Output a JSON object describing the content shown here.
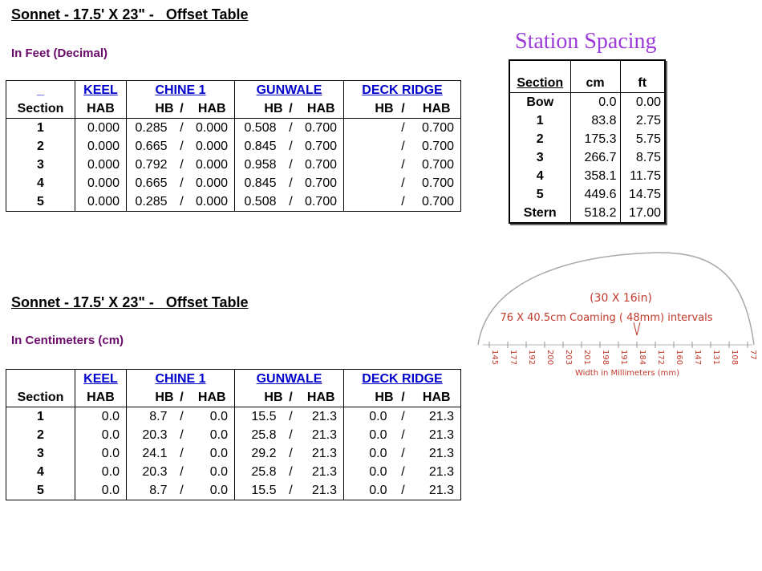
{
  "feet": {
    "title": "Sonnet - 17.5' X 23\" -   Offset Table",
    "subtitle": "In Feet (Decimal)",
    "groups": {
      "section_blank": "_",
      "keel": "KEEL",
      "chine": "CHINE 1",
      "gunwale": "GUNWALE",
      "deck": "DECK RIDGE"
    },
    "headers": {
      "section": "Section",
      "hab": "HAB",
      "hb": "HB",
      "slash": "/"
    },
    "rows": [
      {
        "section": "1",
        "keel_hab": "0.000",
        "chine_hb": "0.285",
        "chine_hab": "0.000",
        "gun_hb": "0.508",
        "gun_hab": "0.700",
        "deck_hb": "",
        "deck_hab": "0.700"
      },
      {
        "section": "2",
        "keel_hab": "0.000",
        "chine_hb": "0.665",
        "chine_hab": "0.000",
        "gun_hb": "0.845",
        "gun_hab": "0.700",
        "deck_hb": "",
        "deck_hab": "0.700"
      },
      {
        "section": "3",
        "keel_hab": "0.000",
        "chine_hb": "0.792",
        "chine_hab": "0.000",
        "gun_hb": "0.958",
        "gun_hab": "0.700",
        "deck_hb": "",
        "deck_hab": "0.700"
      },
      {
        "section": "4",
        "keel_hab": "0.000",
        "chine_hb": "0.665",
        "chine_hab": "0.000",
        "gun_hb": "0.845",
        "gun_hab": "0.700",
        "deck_hb": "",
        "deck_hab": "0.700"
      },
      {
        "section": "5",
        "keel_hab": "0.000",
        "chine_hb": "0.285",
        "chine_hab": "0.000",
        "gun_hb": "0.508",
        "gun_hab": "0.700",
        "deck_hb": "",
        "deck_hab": "0.700"
      }
    ]
  },
  "cm": {
    "title": "Sonnet - 17.5' X 23\" -   Offset Table",
    "subtitle": "In Centimeters (cm)",
    "groups": {
      "keel": "KEEL",
      "chine": "CHINE 1",
      "gunwale": "GUNWALE",
      "deck": "DECK RIDGE"
    },
    "headers": {
      "section": "Section",
      "hab": "HAB",
      "hb": "HB",
      "slash": "/"
    },
    "rows": [
      {
        "section": "1",
        "keel_hab": "0.0",
        "chine_hb": "8.7",
        "chine_hab": "0.0",
        "gun_hb": "15.5",
        "gun_hab": "21.3",
        "deck_hb": "0.0",
        "deck_hab": "21.3"
      },
      {
        "section": "2",
        "keel_hab": "0.0",
        "chine_hb": "20.3",
        "chine_hab": "0.0",
        "gun_hb": "25.8",
        "gun_hab": "21.3",
        "deck_hb": "0.0",
        "deck_hab": "21.3"
      },
      {
        "section": "3",
        "keel_hab": "0.0",
        "chine_hb": "24.1",
        "chine_hab": "0.0",
        "gun_hb": "29.2",
        "gun_hab": "21.3",
        "deck_hb": "0.0",
        "deck_hab": "21.3"
      },
      {
        "section": "4",
        "keel_hab": "0.0",
        "chine_hb": "20.3",
        "chine_hab": "0.0",
        "gun_hb": "25.8",
        "gun_hab": "21.3",
        "deck_hb": "0.0",
        "deck_hab": "21.3"
      },
      {
        "section": "5",
        "keel_hab": "0.0",
        "chine_hb": "8.7",
        "chine_hab": "0.0",
        "gun_hb": "15.5",
        "gun_hab": "21.3",
        "deck_hb": "0.0",
        "deck_hab": "21.3"
      }
    ]
  },
  "spacing": {
    "title": "Station Spacing",
    "headers": {
      "section": "Section",
      "cm": "cm",
      "ft": "ft"
    },
    "rows": [
      {
        "section": "Bow",
        "cm": "0.0",
        "ft": "0.00"
      },
      {
        "section": "1",
        "cm": "83.8",
        "ft": "2.75"
      },
      {
        "section": "2",
        "cm": "175.3",
        "ft": "5.75"
      },
      {
        "section": "3",
        "cm": "266.7",
        "ft": "8.75"
      },
      {
        "section": "4",
        "cm": "358.1",
        "ft": "11.75"
      },
      {
        "section": "5",
        "cm": "449.6",
        "ft": "14.75"
      },
      {
        "section": "Stern",
        "cm": "518.2",
        "ft": "17.00"
      }
    ]
  },
  "coaming": {
    "size_label": "(30 X 16in)",
    "interval_label": "76 X 40.5cm Coaming ( 48mm) intervals",
    "axis_label": "Width in Millimeters (mm)",
    "ticks": [
      "145",
      "177",
      "192",
      "200",
      "203",
      "201",
      "198",
      "191",
      "184",
      "172",
      "160",
      "147",
      "131",
      "108",
      "77"
    ],
    "colors": {
      "text": "#c0392b",
      "line": "#999999"
    }
  }
}
